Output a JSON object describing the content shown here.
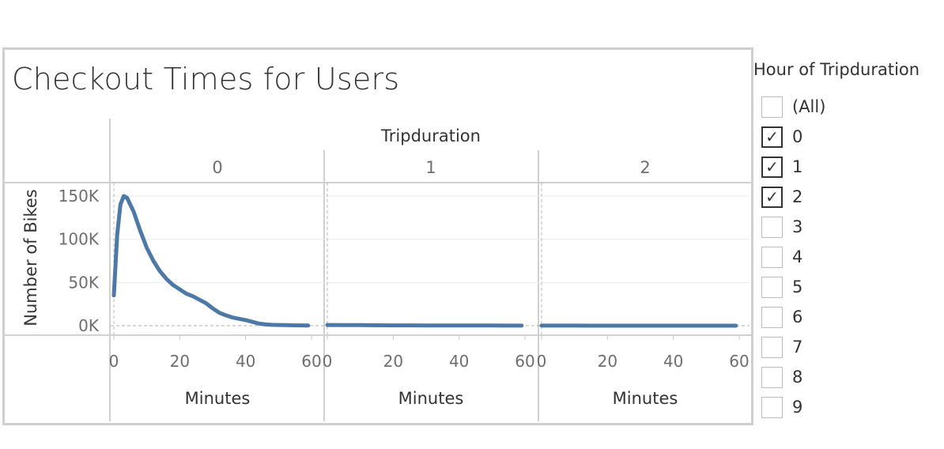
{
  "title": "Checkout Times for Users",
  "filter": {
    "title": "Hour of Tripduration",
    "items": [
      {
        "label": "(All)",
        "checked": false
      },
      {
        "label": "0",
        "checked": true
      },
      {
        "label": "1",
        "checked": true
      },
      {
        "label": "2",
        "checked": true
      },
      {
        "label": "3",
        "checked": false
      },
      {
        "label": "4",
        "checked": false
      },
      {
        "label": "5",
        "checked": false
      },
      {
        "label": "6",
        "checked": false
      },
      {
        "label": "7",
        "checked": false
      },
      {
        "label": "8",
        "checked": false
      },
      {
        "label": "9",
        "checked": false
      }
    ]
  },
  "chart_data": {
    "type": "line",
    "title": "Checkout Times for Users",
    "column_header": "Tripduration",
    "ylabel": "Number of Bikes",
    "xlabel": "Minutes",
    "ylim": [
      0,
      160000
    ],
    "xlim": [
      0,
      60
    ],
    "y_ticks": [
      0,
      50000,
      100000,
      150000
    ],
    "y_tick_labels": [
      "0K",
      "50K",
      "100K",
      "150K"
    ],
    "x_ticks": [
      0,
      20,
      40,
      60
    ],
    "x_tick_labels": [
      "0",
      "20",
      "40",
      "60"
    ],
    "line_color": "#4e79a7",
    "panes": [
      {
        "label": "0",
        "x": [
          0,
          1,
          2,
          3,
          4,
          5,
          6,
          8,
          10,
          12,
          14,
          16,
          18,
          20,
          22,
          24,
          26,
          28,
          30,
          32,
          34,
          36,
          38,
          40,
          42,
          44,
          46,
          48,
          50,
          52,
          54,
          56,
          58,
          59
        ],
        "y": [
          35000,
          105000,
          140000,
          150000,
          148000,
          140000,
          132000,
          110000,
          90000,
          75000,
          63000,
          54000,
          47000,
          42000,
          37000,
          34000,
          30000,
          26000,
          20000,
          15000,
          12000,
          9500,
          8000,
          6500,
          4500,
          2500,
          1500,
          1000,
          800,
          600,
          500,
          400,
          300,
          200
        ]
      },
      {
        "label": "1",
        "x": [
          0,
          5,
          10,
          15,
          20,
          25,
          30,
          35,
          40,
          45,
          50,
          55,
          59
        ],
        "y": [
          800,
          700,
          600,
          500,
          400,
          350,
          300,
          250,
          200,
          180,
          150,
          120,
          100
        ]
      },
      {
        "label": "2",
        "x": [
          0,
          5,
          10,
          15,
          20,
          25,
          30,
          35,
          40,
          45,
          50,
          55,
          59
        ],
        "y": [
          60,
          55,
          50,
          45,
          40,
          35,
          30,
          30,
          30,
          30,
          30,
          30,
          30
        ]
      }
    ]
  }
}
